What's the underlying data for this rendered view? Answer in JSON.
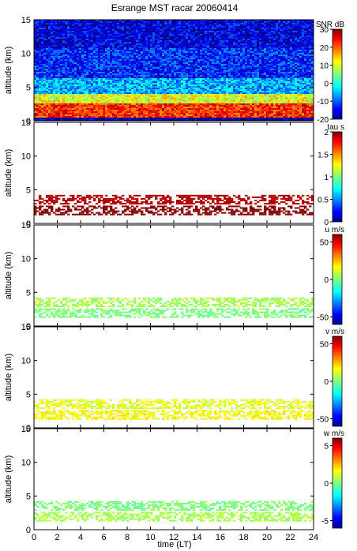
{
  "figure": {
    "title": "Esrange MST racar 20060414",
    "xlabel": "time (LT)",
    "x_ticks": [
      "0",
      "2",
      "4",
      "6",
      "8",
      "10",
      "12",
      "14",
      "16",
      "18",
      "20",
      "22",
      "24"
    ]
  },
  "chart_data": [
    {
      "type": "heatmap",
      "ylabel": "altitude (km)",
      "y_ticks": [
        "0",
        "5",
        "10",
        "15"
      ],
      "ylim": [
        0,
        15
      ],
      "xlim": [
        0,
        24
      ],
      "colorbar_label": "SNR dB",
      "colorbar_ticks": [
        "30",
        "20",
        "10",
        "0",
        "-10",
        "-20"
      ],
      "colorbar_range": [
        -20,
        30
      ],
      "colormap": "jet",
      "description_layers": [
        {
          "alt_from": 0.5,
          "alt_to": 2.6,
          "snr_db": 22
        },
        {
          "alt_from": 2.6,
          "alt_to": 4.2,
          "snr_db": 10
        },
        {
          "alt_from": 4.2,
          "alt_to": 6.5,
          "snr_db": -5
        },
        {
          "alt_from": 6.5,
          "alt_to": 11.0,
          "snr_db": -12
        },
        {
          "alt_from": 11.0,
          "alt_to": 15.0,
          "snr_db": -15
        }
      ]
    },
    {
      "type": "heatmap",
      "ylabel": "altitude (km)",
      "y_ticks": [
        "0",
        "5",
        "10",
        "15"
      ],
      "ylim": [
        0,
        15
      ],
      "xlim": [
        0,
        24
      ],
      "colorbar_label": "tau s",
      "colorbar_ticks": [
        "2",
        "1.5",
        "1",
        "0.5",
        "0"
      ],
      "colorbar_range": [
        0,
        2
      ],
      "colormap": "jet",
      "description_layers": [
        {
          "alt_from": 1.2,
          "alt_to": 2.6,
          "value": 2.0
        },
        {
          "alt_from": 2.8,
          "alt_to": 4.2,
          "value": 1.9
        }
      ]
    },
    {
      "type": "heatmap",
      "ylabel": "altitude (km)",
      "y_ticks": [
        "0",
        "5",
        "10",
        "15"
      ],
      "ylim": [
        0,
        15
      ],
      "xlim": [
        0,
        24
      ],
      "colorbar_label": "u m/s",
      "colorbar_ticks": [
        "50",
        "0",
        "-50"
      ],
      "colorbar_range": [
        -60,
        60
      ],
      "colormap": "jet",
      "description_layers": [
        {
          "alt_from": 1.2,
          "alt_to": 2.6,
          "value": 0
        },
        {
          "alt_from": 2.8,
          "alt_to": 4.2,
          "value": 5
        }
      ]
    },
    {
      "type": "heatmap",
      "ylabel": "altitude (km)",
      "y_ticks": [
        "0",
        "5",
        "10",
        "15"
      ],
      "ylim": [
        0,
        15
      ],
      "xlim": [
        0,
        24
      ],
      "colorbar_label": "v m/s",
      "colorbar_ticks": [
        "50",
        "0",
        "-50"
      ],
      "colorbar_range": [
        -60,
        60
      ],
      "colormap": "jet",
      "description_layers": [
        {
          "alt_from": 1.2,
          "alt_to": 2.6,
          "value": 15
        },
        {
          "alt_from": 2.8,
          "alt_to": 4.2,
          "value": 12
        }
      ]
    },
    {
      "type": "heatmap",
      "ylabel": "altitude (km)",
      "y_ticks": [
        "0",
        "5",
        "10",
        "15"
      ],
      "ylim": [
        0,
        15
      ],
      "xlim": [
        0,
        24
      ],
      "colorbar_label": "w m/s",
      "colorbar_ticks": [
        "5",
        "0",
        "-5"
      ],
      "colorbar_range": [
        -6,
        6
      ],
      "colormap": "jet",
      "description_layers": [
        {
          "alt_from": 1.2,
          "alt_to": 2.6,
          "value": 0.5
        },
        {
          "alt_from": 2.8,
          "alt_to": 4.2,
          "value": 0
        }
      ]
    }
  ]
}
